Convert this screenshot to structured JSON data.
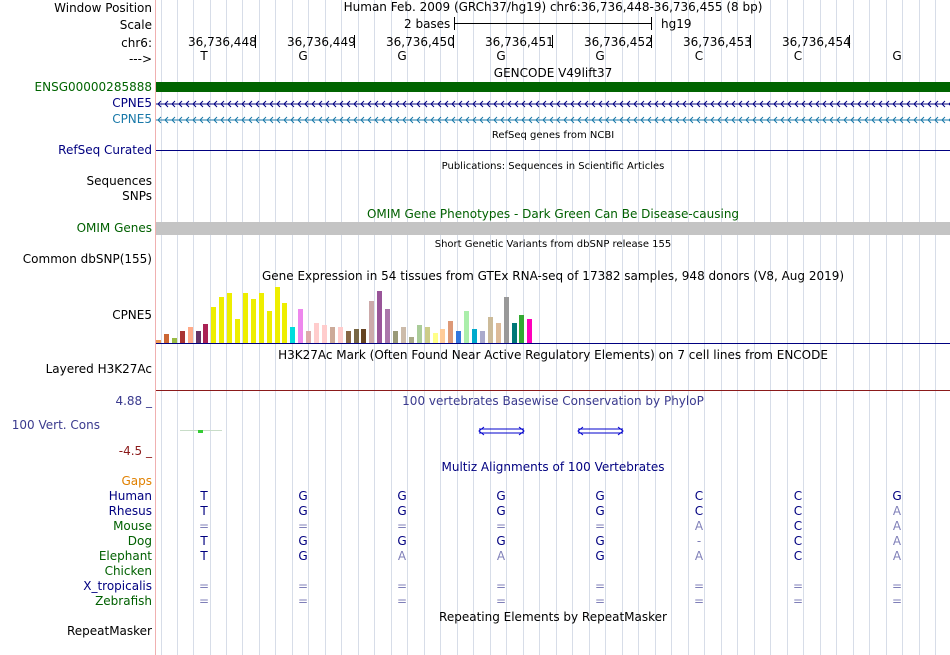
{
  "colors": {
    "gencode_green": "#006400",
    "cpne5_blue": "#000080",
    "cpne5_teal": "#1878a8",
    "omim_green": "#006000",
    "phylop_blue": "#3a3a8e",
    "phylop_red": "#8b1a1a",
    "h3k_line": "#8b1a1a",
    "gaps_orange": "#e08000"
  },
  "labels": {
    "window_position": "Window Position",
    "scale": "Scale",
    "chrom": "chr6:",
    "strand": "--->",
    "gencode_track": "ENSG00000285888",
    "cpne5_a": "CPNE5",
    "cpne5_b": "CPNE5",
    "refseq": "RefSeq Curated",
    "sequences": "Sequences",
    "snps": "SNPs",
    "omim": "OMIM Genes",
    "dbsnp": "Common dbSNP(155)",
    "gtex": "CPNE5",
    "h3k27ac": "Layered H3K27Ac",
    "phylop_max": "4.88 _",
    "phylop_name": "100 Vert. Cons",
    "phylop_min": "-4.5 _",
    "gaps": "Gaps",
    "repeatmasker": "RepeatMasker"
  },
  "header": {
    "window_text": "Human Feb. 2009 (GRCh37/hg19)   chr6:36,736,448-36,736,455 (8 bp)",
    "scale_text": "2 bases",
    "assembly": "hg19"
  },
  "coords": [
    "36,736,448",
    "36,736,449",
    "36,736,450",
    "36,736,451",
    "36,736,452",
    "36,736,453",
    "36,736,454"
  ],
  "reference_bases": [
    "T",
    "G",
    "G",
    "G",
    "G",
    "C",
    "C",
    "G"
  ],
  "track_titles": {
    "gencode": "GENCODE V49lift37",
    "refseq": "RefSeq genes from NCBI",
    "publications": "Publications: Sequences in Scientific Articles",
    "omim": "OMIM Gene Phenotypes - Dark Green Can Be Disease-causing",
    "dbsnp": "Short Genetic Variants from dbSNP release 155",
    "gtex": "Gene Expression in 54 tissues from GTEx RNA-seq of 17382 samples, 948 donors (V8, Aug 2019)",
    "h3k27ac": "H3K27Ac Mark (Often Found Near Active Regulatory Elements) on 7 cell lines from ENCODE",
    "phylop": "100 vertebrates Basewise Conservation by PhyloP",
    "multiz": "Multiz Alignments of 100 Vertebrates",
    "repeatmasker": "Repeating Elements by RepeatMasker"
  },
  "species": [
    {
      "name": "Human",
      "color": "#000080",
      "bases": [
        "T",
        "G",
        "G",
        "G",
        "G",
        "C",
        "C",
        "G"
      ]
    },
    {
      "name": "Rhesus",
      "color": "#000080",
      "bases": [
        "T",
        "G",
        "G",
        "G",
        "G",
        "C",
        "C",
        "A"
      ]
    },
    {
      "name": "Mouse",
      "color": "#006000",
      "bases": [
        "=",
        "=",
        "=",
        "=",
        "=",
        "A",
        "C",
        "A"
      ]
    },
    {
      "name": "Dog",
      "color": "#006000",
      "bases": [
        "T",
        "G",
        "G",
        "G",
        "G",
        "-",
        "C",
        "A"
      ]
    },
    {
      "name": "Elephant",
      "color": "#006000",
      "bases": [
        "T",
        "G",
        "A",
        "A",
        "G",
        "A",
        "C",
        "A"
      ]
    },
    {
      "name": "Chicken",
      "color": "#006000",
      "bases": [
        "",
        "",
        "",
        "",
        "",
        "",
        "",
        ""
      ]
    },
    {
      "name": "X_tropicalis",
      "color": "#000080",
      "bases": [
        "=",
        "=",
        "=",
        "=",
        "=",
        "=",
        "=",
        "="
      ]
    },
    {
      "name": "Zebrafish",
      "color": "#006000",
      "bases": [
        "=",
        "=",
        "=",
        "=",
        "=",
        "=",
        "=",
        "="
      ]
    }
  ],
  "gtex_bars": [
    {
      "value": 3,
      "color": "#ee9955"
    },
    {
      "value": 9,
      "color": "#cc6633"
    },
    {
      "value": 5,
      "color": "#99bb44"
    },
    {
      "value": 12,
      "color": "#aa3333"
    },
    {
      "value": 16,
      "color": "#ffaa88"
    },
    {
      "value": 12,
      "color": "#663366"
    },
    {
      "value": 19,
      "color": "#aa2255"
    },
    {
      "value": 36,
      "color": "#eeee00"
    },
    {
      "value": 46,
      "color": "#eeee00"
    },
    {
      "value": 50,
      "color": "#eeee00"
    },
    {
      "value": 24,
      "color": "#eeee00"
    },
    {
      "value": 50,
      "color": "#eeee00"
    },
    {
      "value": 44,
      "color": "#eeee00"
    },
    {
      "value": 50,
      "color": "#eeee00"
    },
    {
      "value": 32,
      "color": "#eeee00"
    },
    {
      "value": 56,
      "color": "#eeee00"
    },
    {
      "value": 40,
      "color": "#eeee00"
    },
    {
      "value": 16,
      "color": "#00dddd"
    },
    {
      "value": 34,
      "color": "#ee88ee"
    },
    {
      "value": 12,
      "color": "#ddaaaa"
    },
    {
      "value": 20,
      "color": "#ffcccc"
    },
    {
      "value": 18,
      "color": "#ffcccc"
    },
    {
      "value": 16,
      "color": "#ccaa99"
    },
    {
      "value": 16,
      "color": "#ffcccc"
    },
    {
      "value": 12,
      "color": "#886644"
    },
    {
      "value": 14,
      "color": "#776644"
    },
    {
      "value": 14,
      "color": "#664422"
    },
    {
      "value": 42,
      "color": "#ccaaaa"
    },
    {
      "value": 52,
      "color": "#995599"
    },
    {
      "value": 34,
      "color": "#aa77aa"
    },
    {
      "value": 12,
      "color": "#999977"
    },
    {
      "value": 16,
      "color": "#ccbbaa"
    },
    {
      "value": 6,
      "color": "#aaaa88"
    },
    {
      "value": 18,
      "color": "#aacc99"
    },
    {
      "value": 16,
      "color": "#cccc88"
    },
    {
      "value": 10,
      "color": "#ffff88"
    },
    {
      "value": 14,
      "color": "#ffcc99"
    },
    {
      "value": 22,
      "color": "#dd9977"
    },
    {
      "value": 12,
      "color": "#3377dd"
    },
    {
      "value": 32,
      "color": "#aaeeaa"
    },
    {
      "value": 14,
      "color": "#00aacc"
    },
    {
      "value": 12,
      "color": "#aaaacc"
    },
    {
      "value": 26,
      "color": "#ccbb99"
    },
    {
      "value": 20,
      "color": "#ddbb99"
    },
    {
      "value": 46,
      "color": "#999999"
    },
    {
      "value": 20,
      "color": "#007777"
    },
    {
      "value": 28,
      "color": "#33aa33"
    },
    {
      "value": 24,
      "color": "#ff00bb"
    }
  ]
}
